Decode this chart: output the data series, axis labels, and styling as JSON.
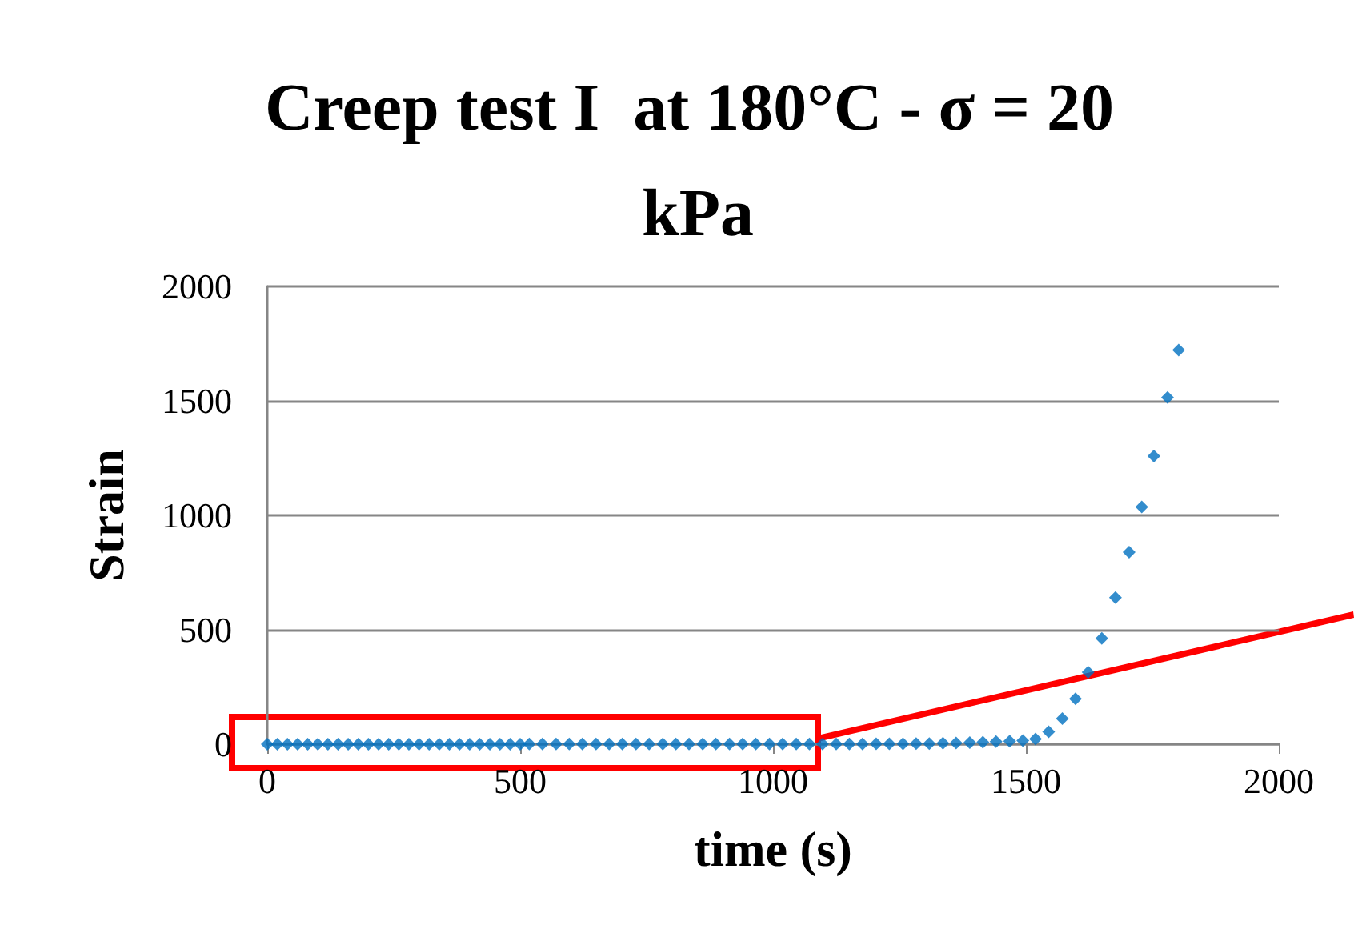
{
  "chart_data": {
    "type": "scatter",
    "title": "Creep test I  at 180°C - σ = 20 kPa",
    "xlabel": "time (s)",
    "ylabel": "Strain",
    "x": [
      0,
      20,
      40,
      60,
      80,
      100,
      120,
      140,
      160,
      180,
      200,
      220,
      240,
      260,
      280,
      300,
      320,
      340,
      360,
      380,
      400,
      420,
      440,
      460,
      480,
      500,
      518,
      544,
      571,
      597,
      623,
      650,
      676,
      702,
      729,
      755,
      782,
      808,
      834,
      861,
      887,
      914,
      940,
      966,
      993,
      1019,
      1046,
      1072,
      1098,
      1125,
      1151,
      1177,
      1204,
      1230,
      1257,
      1283,
      1309,
      1336,
      1362,
      1389,
      1415,
      1441,
      1468,
      1494,
      1519,
      1545,
      1572,
      1598,
      1623,
      1650,
      1677,
      1704,
      1729,
      1753,
      1780,
      1802
    ],
    "values": [
      0,
      0,
      0,
      0,
      0,
      0,
      0,
      0,
      0,
      0,
      0,
      0,
      0,
      0,
      0,
      0,
      0,
      0,
      0,
      0,
      0,
      0,
      0,
      0,
      0,
      0,
      1,
      1,
      1,
      1,
      1,
      1,
      1,
      1,
      1,
      1,
      1,
      1,
      1,
      1,
      1,
      1,
      1,
      1,
      1,
      1,
      1,
      1,
      1,
      1,
      1,
      1,
      2,
      2,
      2,
      3,
      3,
      4,
      5,
      7,
      9,
      11,
      13,
      16,
      23,
      54,
      112,
      198,
      315,
      462,
      641,
      839,
      1037,
      1259,
      1515,
      1722
    ],
    "color": "#0070c0",
    "marker": "diamond",
    "xlim": [
      0,
      2000
    ],
    "xticks": [
      0,
      500,
      1000,
      1500,
      2000
    ],
    "ylim": [
      0,
      2000
    ],
    "yticks": [
      0,
      500,
      1000,
      1500,
      2000
    ],
    "grid": "y"
  }
}
